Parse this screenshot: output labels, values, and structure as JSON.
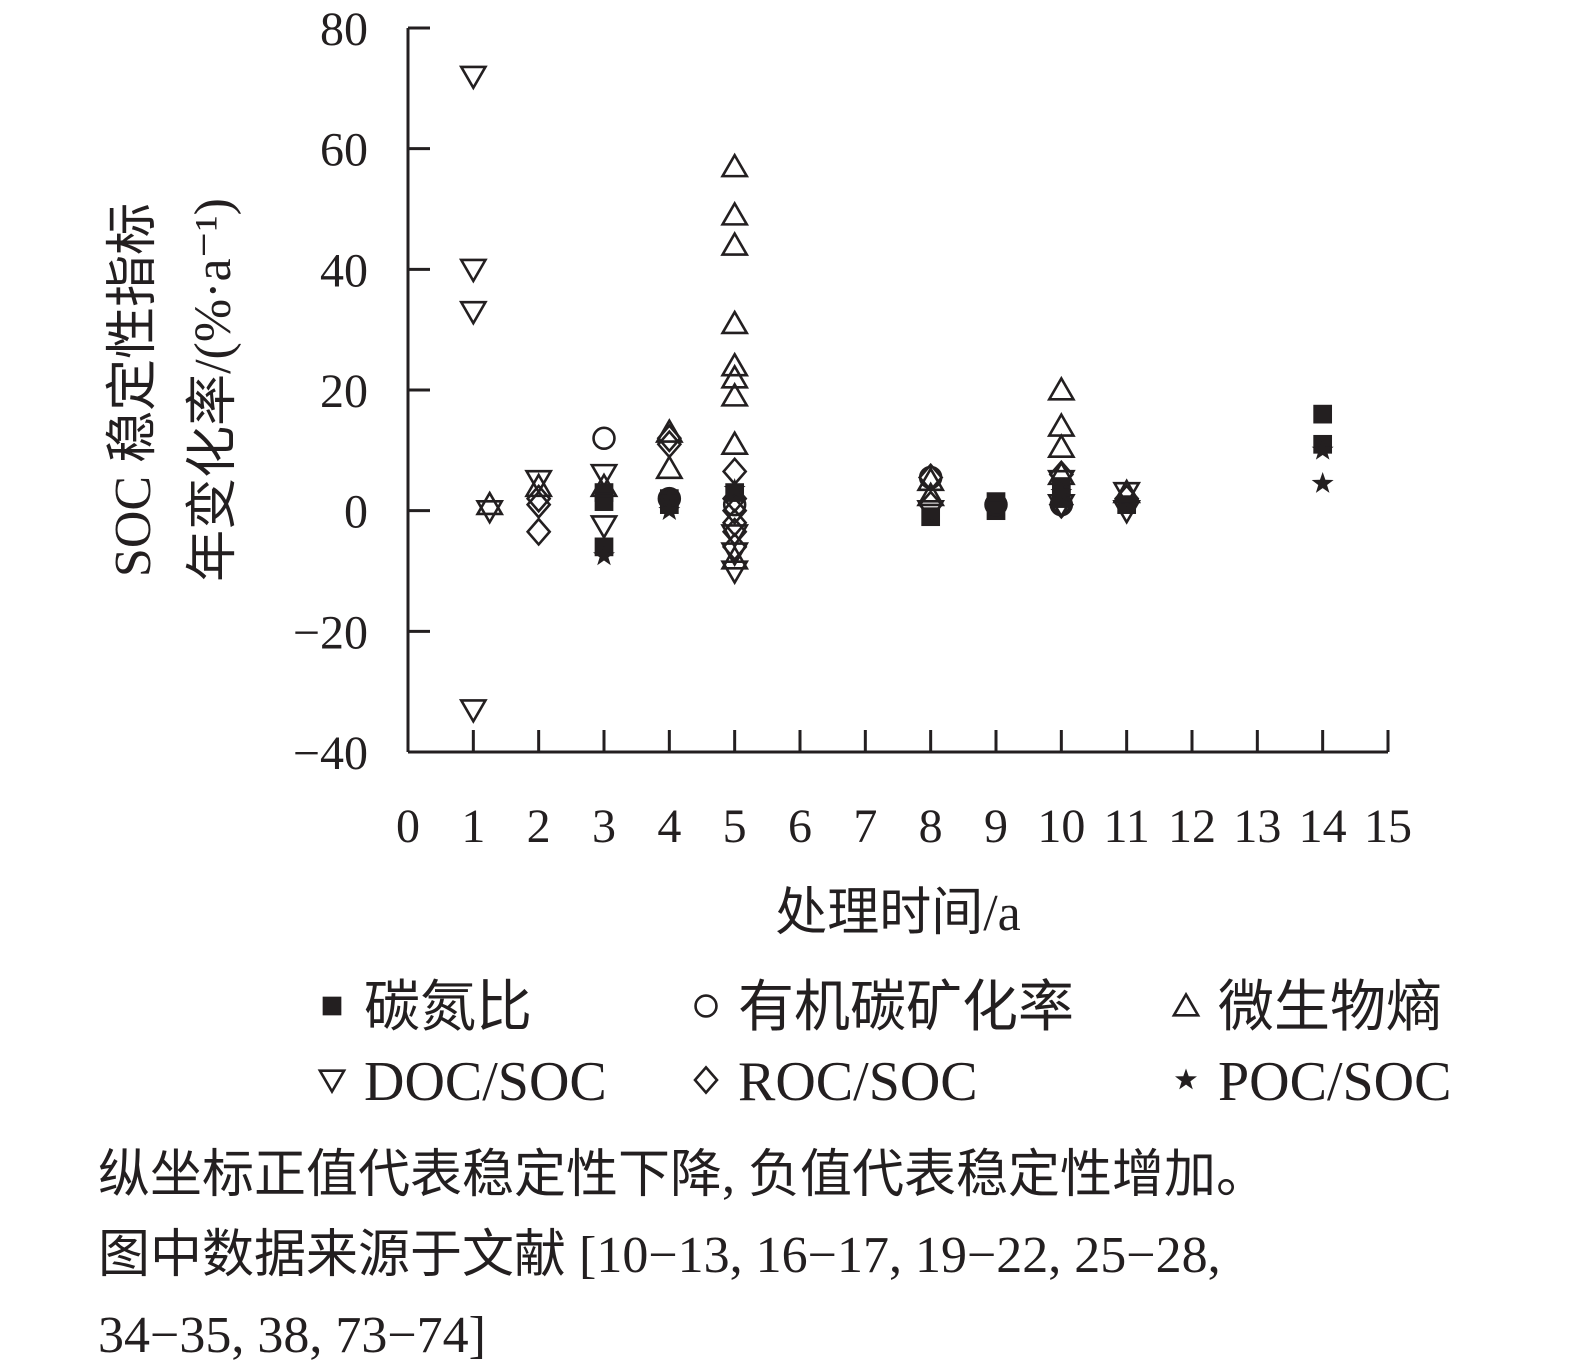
{
  "chart_data": {
    "type": "scatter",
    "title": "",
    "xlabel": "处理时间/a",
    "ylabel_line1": "SOC 稳定性指标",
    "ylabel_line2": "年变化率/(%·a⁻¹)",
    "xlim": [
      0,
      15
    ],
    "ylim": [
      -40,
      80
    ],
    "x_ticks": [
      0,
      1,
      2,
      3,
      4,
      5,
      6,
      7,
      8,
      9,
      10,
      11,
      12,
      13,
      14,
      15
    ],
    "x_tick_labels": [
      "0",
      "1",
      "2",
      "3",
      "4",
      "5",
      "6",
      "7",
      "8",
      "9",
      "10",
      "11",
      "12",
      "13",
      "14",
      "15"
    ],
    "y_ticks": [
      -40,
      -20,
      0,
      20,
      40,
      60,
      80
    ],
    "y_tick_labels": [
      "−40",
      "−20",
      "0",
      "20",
      "40",
      "60",
      "80"
    ],
    "grid": false,
    "legend_position": "bottom",
    "series": [
      {
        "name": "碳氮比",
        "marker": "square",
        "points": [
          [
            3,
            3
          ],
          [
            3,
            1.5
          ],
          [
            3,
            -6
          ],
          [
            4,
            2
          ],
          [
            4,
            1
          ],
          [
            5,
            3
          ],
          [
            8,
            -1
          ],
          [
            9,
            1.5
          ],
          [
            9,
            0
          ],
          [
            10,
            4
          ],
          [
            10,
            2
          ],
          [
            11,
            1
          ],
          [
            14,
            16
          ],
          [
            14,
            11
          ]
        ]
      },
      {
        "name": "有机碳矿化率",
        "marker": "circle",
        "points": [
          [
            3,
            12
          ],
          [
            4,
            2
          ],
          [
            5,
            1
          ],
          [
            8,
            5.5
          ],
          [
            9,
            1
          ],
          [
            10,
            1
          ]
        ]
      },
      {
        "name": "微生物熵",
        "marker": "triangle-up",
        "points": [
          [
            1.25,
            1
          ],
          [
            2,
            4
          ],
          [
            3,
            4
          ],
          [
            4,
            13
          ],
          [
            4,
            7
          ],
          [
            5,
            57
          ],
          [
            5,
            49
          ],
          [
            5,
            44
          ],
          [
            5,
            31
          ],
          [
            5,
            24
          ],
          [
            5,
            22
          ],
          [
            5,
            19
          ],
          [
            5,
            11
          ],
          [
            5,
            -8
          ],
          [
            8,
            5
          ],
          [
            8,
            2.5
          ],
          [
            10,
            20
          ],
          [
            10,
            14
          ],
          [
            10,
            10.5
          ],
          [
            10,
            6
          ],
          [
            11,
            3
          ]
        ]
      },
      {
        "name": "DOC/SOC",
        "marker": "triangle-down",
        "points": [
          [
            1,
            72
          ],
          [
            1,
            40
          ],
          [
            1,
            33
          ],
          [
            1,
            -33
          ],
          [
            1.25,
            0
          ],
          [
            2,
            5
          ],
          [
            3,
            6
          ],
          [
            3,
            -2.5
          ],
          [
            5,
            -4
          ],
          [
            5,
            -7
          ],
          [
            5,
            -10
          ],
          [
            8,
            0
          ],
          [
            10,
            5
          ],
          [
            10,
            1
          ],
          [
            11,
            3
          ],
          [
            11,
            0
          ]
        ]
      },
      {
        "name": "ROC/SOC",
        "marker": "diamond",
        "points": [
          [
            2,
            2
          ],
          [
            2,
            1
          ],
          [
            2,
            -3.5
          ],
          [
            4,
            12
          ],
          [
            4,
            11
          ],
          [
            5,
            6.5
          ],
          [
            5,
            2
          ],
          [
            5,
            0
          ],
          [
            5,
            -2
          ],
          [
            5,
            -3.5
          ],
          [
            5,
            -6
          ],
          [
            8,
            5.5
          ],
          [
            8,
            1
          ],
          [
            10,
            6
          ],
          [
            10,
            1
          ],
          [
            11,
            2
          ]
        ]
      },
      {
        "name": "POC/SOC",
        "marker": "star",
        "points": [
          [
            3,
            -7.5
          ],
          [
            4,
            2
          ],
          [
            4,
            0
          ],
          [
            5,
            3.5
          ],
          [
            10,
            3
          ],
          [
            14,
            10
          ],
          [
            14,
            4.5
          ]
        ]
      }
    ]
  },
  "note": {
    "line1": "纵坐标正值代表稳定性下降, 负值代表稳定性增加。",
    "line2": "图中数据来源于文献 [10−13, 16−17, 19−22, 25−28,",
    "line3": "34−35, 38, 73−74]"
  },
  "colors": {
    "ink": "#231f20",
    "background": "#ffffff"
  }
}
